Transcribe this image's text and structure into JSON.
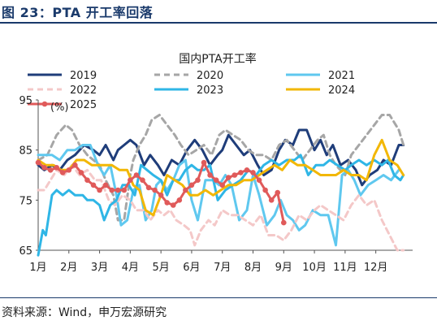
{
  "figure": {
    "title": "图 23：PTA 开工率回落",
    "source": "资料来源：Wind，申万宏源研究"
  },
  "chart_data": {
    "type": "line",
    "title": "国内PTA开工率",
    "ylabel": "(%)",
    "ylim": [
      65,
      95
    ],
    "yticks": [
      65,
      75,
      85,
      95
    ],
    "x_categories": [
      "1月",
      "2月",
      "3月",
      "4月",
      "5月",
      "6月",
      "7月",
      "8月",
      "9月",
      "10月",
      "11月",
      "12月"
    ],
    "xlim": [
      1,
      13.2
    ],
    "legend_position": "top",
    "series": [
      {
        "name": "2019",
        "color": "#1f3d7a",
        "dash": "",
        "width": 3,
        "x": [
          1.0,
          1.2,
          1.45,
          1.7,
          1.95,
          2.2,
          2.5,
          2.8,
          3.0,
          3.2,
          3.45,
          3.6,
          3.8,
          4.0,
          4.2,
          4.45,
          4.65,
          4.9,
          5.1,
          5.35,
          5.6,
          5.85,
          6.1,
          6.35,
          6.6,
          6.85,
          7.0,
          7.2,
          7.45,
          7.7,
          7.9,
          8.15,
          8.35,
          8.6,
          8.85,
          9.05,
          9.3,
          9.5,
          9.75,
          10.0,
          10.2,
          10.4,
          10.6,
          10.85,
          11.1,
          11.35,
          11.55,
          11.8,
          12.05,
          12.25,
          12.5,
          12.75,
          12.9
        ],
        "y": [
          82,
          81,
          82,
          81,
          83,
          84,
          86,
          85,
          84,
          86,
          83,
          85,
          86,
          87,
          86,
          82,
          84,
          82,
          80,
          83,
          82,
          85,
          87,
          85,
          82,
          84,
          85,
          88,
          86,
          84,
          85,
          82,
          80,
          81,
          85,
          87,
          86,
          89,
          89,
          85,
          87,
          84,
          86,
          82,
          83,
          81,
          78,
          80,
          81,
          83,
          82,
          86,
          86
        ]
      },
      {
        "name": "2020",
        "color": "#a6a6a6",
        "dash": "7,5",
        "width": 3,
        "x": [
          1.0,
          1.3,
          1.6,
          1.9,
          2.1,
          2.35,
          2.6,
          2.8,
          3.0,
          3.2,
          3.45,
          3.6,
          3.8,
          4.0,
          4.1,
          4.3,
          4.5,
          4.7,
          4.95,
          5.2,
          5.45,
          5.65,
          5.9,
          6.15,
          6.4,
          6.65,
          6.9,
          7.1,
          7.35,
          7.6,
          7.85,
          8.1,
          8.35,
          8.6,
          8.85,
          9.1,
          9.35,
          9.6,
          9.85,
          10.1,
          10.3,
          10.5,
          10.7,
          11.0,
          11.2,
          11.45,
          11.7,
          11.95,
          12.2,
          12.45,
          12.75,
          12.9
        ],
        "y": [
          83,
          84,
          88,
          90,
          89,
          86,
          84,
          83,
          82,
          79,
          76,
          71,
          71,
          80,
          83,
          86,
          88,
          91,
          92,
          90,
          88,
          86,
          84,
          85,
          86,
          84,
          88,
          89,
          88,
          87,
          85,
          84,
          84,
          83,
          86,
          87,
          85,
          83,
          85,
          87,
          88,
          84,
          82,
          80,
          84,
          86,
          88,
          90,
          92,
          92,
          89,
          86
        ]
      },
      {
        "name": "2021",
        "color": "#5fc8ef",
        "dash": "",
        "width": 3,
        "x": [
          1.0,
          1.2,
          1.45,
          1.7,
          1.95,
          2.2,
          2.45,
          2.7,
          2.95,
          3.15,
          3.35,
          3.55,
          3.7,
          3.9,
          4.1,
          4.3,
          4.5,
          4.7,
          4.85,
          5.0,
          5.2,
          5.4,
          5.6,
          5.8,
          6.0,
          6.2,
          6.45,
          6.7,
          6.9,
          7.1,
          7.3,
          7.55,
          7.8,
          8.0,
          8.2,
          8.45,
          8.7,
          8.9,
          9.1,
          9.3,
          9.5,
          9.7,
          9.95,
          10.2,
          10.45,
          10.7,
          10.9,
          11.1,
          11.3,
          11.5,
          11.75,
          12.0,
          12.25,
          12.5,
          12.75
        ],
        "y": [
          84,
          84,
          84,
          83,
          85,
          85,
          86,
          86,
          82,
          80,
          82,
          76,
          70,
          71,
          77,
          78,
          71,
          73,
          78,
          79,
          77,
          79,
          82,
          83,
          75,
          71,
          79,
          79,
          78,
          80,
          78,
          71,
          73,
          80,
          76,
          70,
          72,
          75,
          72,
          71,
          69,
          70,
          73,
          72,
          72,
          66,
          80,
          81,
          79,
          76,
          78,
          79,
          80,
          79,
          81
        ]
      },
      {
        "name": "2022",
        "color": "#f4c8c8",
        "dash": "7,5",
        "width": 3,
        "x": [
          1.0,
          1.2,
          1.4,
          1.6,
          1.85,
          2.1,
          2.35,
          2.6,
          2.85,
          3.05,
          3.3,
          3.5,
          3.75,
          4.0,
          4.2,
          4.45,
          4.65,
          4.9,
          5.1,
          5.3,
          5.5,
          5.75,
          5.95,
          6.1,
          6.3,
          6.55,
          6.75,
          7.0,
          7.25,
          7.5,
          7.75,
          8.0,
          8.25,
          8.5,
          8.75,
          9.0,
          9.25,
          9.5,
          9.75,
          10.0,
          10.2,
          10.45,
          10.7,
          10.95,
          11.2,
          11.45,
          11.7,
          11.95,
          12.2,
          12.45,
          12.7,
          12.9
        ],
        "y": [
          77,
          77,
          79,
          81,
          80,
          82,
          80,
          81,
          79,
          79,
          75,
          74,
          76,
          75,
          73,
          73,
          71,
          73,
          72,
          73,
          71,
          70,
          69,
          66,
          69,
          71,
          70,
          73,
          72,
          72,
          71,
          70,
          72,
          68,
          68,
          67,
          69,
          72,
          71,
          73,
          74,
          73,
          72,
          71,
          74,
          76,
          74,
          75,
          71,
          68,
          65,
          65
        ]
      },
      {
        "name": "2023",
        "color": "#2fb6e6",
        "dash": "",
        "width": 3,
        "x": [
          1.0,
          1.15,
          1.25,
          1.45,
          1.6,
          1.8,
          2.0,
          2.2,
          2.45,
          2.6,
          2.8,
          3.0,
          3.15,
          3.35,
          3.55,
          3.75,
          3.95,
          4.15,
          4.35,
          4.55,
          4.75,
          5.0,
          5.2,
          5.4,
          5.6,
          5.8,
          6.0,
          6.2,
          6.4,
          6.6,
          6.85,
          7.1,
          7.35,
          7.6,
          7.85,
          8.1,
          8.35,
          8.6,
          8.85,
          9.1,
          9.35,
          9.55,
          9.8,
          10.05,
          10.3,
          10.5,
          10.75,
          11.0,
          11.2,
          11.45,
          11.7,
          11.95,
          12.2,
          12.4,
          12.6,
          12.8,
          12.9
        ],
        "y": [
          64,
          69,
          68,
          76,
          77,
          76,
          77,
          76,
          76,
          75,
          75,
          74,
          71,
          74,
          75,
          78,
          78,
          76,
          82,
          81,
          80,
          79,
          76,
          79,
          79,
          81,
          82,
          81,
          81,
          82,
          75,
          77,
          78,
          79,
          81,
          80,
          82,
          83,
          82,
          83,
          83,
          84,
          80,
          82,
          82,
          83,
          82,
          81,
          82,
          83,
          82,
          83,
          82,
          83,
          80,
          79,
          80
        ]
      },
      {
        "name": "2024",
        "color": "#f2b705",
        "dash": "",
        "width": 3,
        "x": [
          1.0,
          1.25,
          1.5,
          1.75,
          2.0,
          2.25,
          2.5,
          2.75,
          3.0,
          3.2,
          3.4,
          3.65,
          3.9,
          4.1,
          4.3,
          4.5,
          4.75,
          5.0,
          5.2,
          5.45,
          5.7,
          5.95,
          6.2,
          6.45,
          6.7,
          6.95,
          7.2,
          7.45,
          7.7,
          7.95,
          8.2,
          8.45,
          8.7,
          8.95,
          9.2,
          9.45,
          9.7,
          9.95,
          10.2,
          10.45,
          10.7,
          10.95,
          11.2,
          11.45,
          11.7,
          11.95,
          12.2,
          12.45,
          12.7,
          12.9
        ],
        "y": [
          83,
          82,
          82,
          81,
          81,
          83,
          83,
          82,
          82,
          82,
          82,
          81,
          81,
          78,
          77,
          73,
          72,
          76,
          80,
          79,
          78,
          76,
          76,
          77,
          76,
          77,
          78,
          78,
          79,
          79,
          80,
          81,
          82,
          81,
          83,
          82,
          82,
          81,
          80,
          80,
          80,
          81,
          80,
          80,
          79,
          84,
          87,
          83,
          82,
          80
        ]
      },
      {
        "name": "2025",
        "color": "#e05a5a",
        "dash": "",
        "width": 3,
        "marker": "circle",
        "x": [
          1.0,
          1.2,
          1.4,
          1.6,
          1.8,
          2.0,
          2.2,
          2.4,
          2.6,
          2.8,
          3.0,
          3.2,
          3.4,
          3.6,
          3.8,
          4.0,
          4.2,
          4.4,
          4.6,
          4.8,
          5.0,
          5.2,
          5.4,
          5.6,
          5.8,
          6.0,
          6.2,
          6.4,
          6.6,
          6.8,
          7.0,
          7.2,
          7.4,
          7.6,
          7.8,
          8.0,
          8.2,
          8.4,
          8.6,
          8.8,
          9.0
        ],
        "y": [
          82.5,
          81.5,
          81,
          81.5,
          80.5,
          81,
          82,
          80.5,
          79,
          78,
          77,
          78,
          77,
          77,
          77,
          79,
          80,
          79,
          77.5,
          77,
          76,
          74.5,
          74,
          75,
          77,
          78,
          79,
          82.5,
          80,
          79,
          78,
          79.5,
          80,
          80.5,
          81,
          80.5,
          79,
          77,
          75,
          76.5,
          70.5
        ]
      }
    ]
  }
}
